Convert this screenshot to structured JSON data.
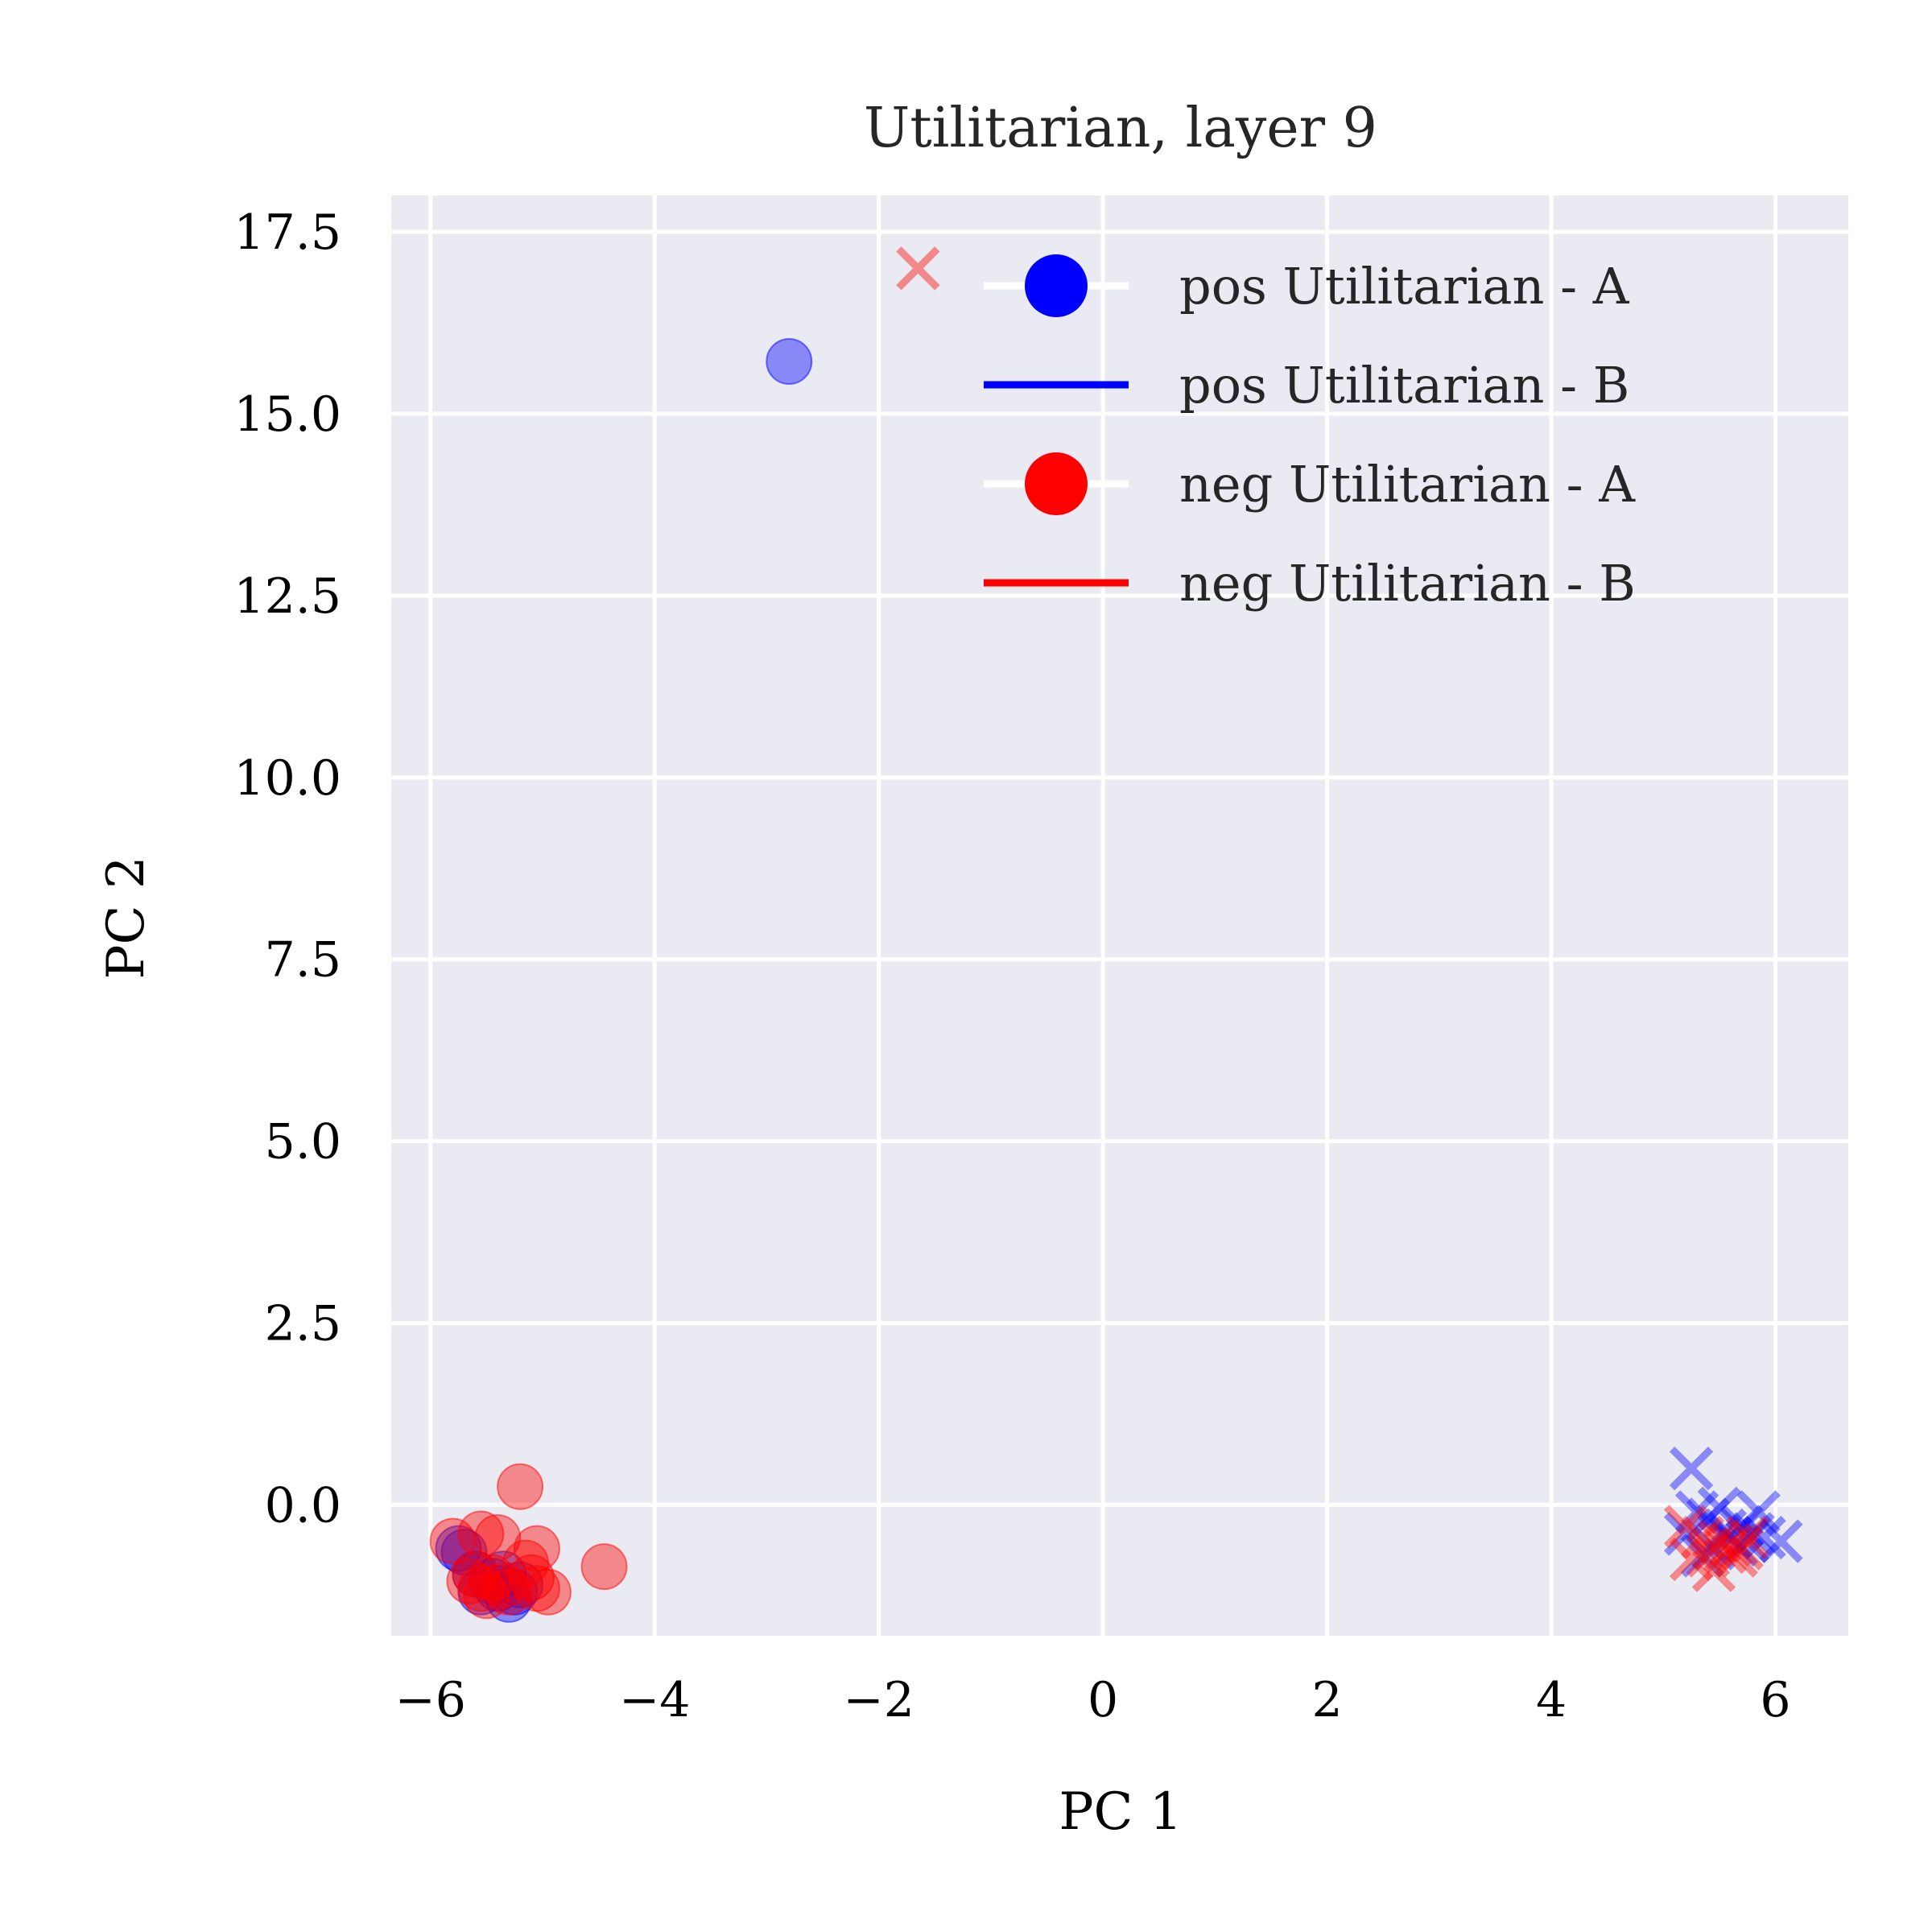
{
  "chart_data": {
    "type": "scatter",
    "title": "Utilitarian, layer 9",
    "xlabel": "PC 1",
    "ylabel": "PC 2",
    "xlim": [
      -6.35,
      6.65
    ],
    "ylim": [
      -1.8,
      18.0
    ],
    "xticks": [
      -6,
      -4,
      -2,
      0,
      2,
      4,
      6
    ],
    "xtick_labels": [
      "−6",
      "−4",
      "−2",
      "0",
      "2",
      "4",
      "6"
    ],
    "yticks": [
      0.0,
      2.5,
      5.0,
      7.5,
      10.0,
      12.5,
      15.0,
      17.5
    ],
    "ytick_labels": [
      "0.0",
      "2.5",
      "5.0",
      "7.5",
      "10.0",
      "12.5",
      "15.0",
      "17.5"
    ],
    "grid": true,
    "legend_position": "top-right",
    "series": [
      {
        "name": "pos Utilitarian - A",
        "marker": "circle",
        "color": "#0000ff",
        "points": [
          {
            "x": -2.8,
            "y": 15.72
          },
          {
            "x": -5.75,
            "y": -0.6
          },
          {
            "x": -5.7,
            "y": -0.65
          },
          {
            "x": -5.6,
            "y": -0.95
          },
          {
            "x": -5.55,
            "y": -1.2
          },
          {
            "x": -5.45,
            "y": -1.05
          },
          {
            "x": -5.4,
            "y": -1.15
          },
          {
            "x": -5.35,
            "y": -0.95
          },
          {
            "x": -5.3,
            "y": -1.3
          },
          {
            "x": -5.25,
            "y": -1.2
          },
          {
            "x": -5.2,
            "y": -1.1
          }
        ]
      },
      {
        "name": "pos Utilitarian - B",
        "marker": "x",
        "color": "#0000ff",
        "points": [
          {
            "x": 5.25,
            "y": 0.5
          },
          {
            "x": 5.2,
            "y": -0.4
          },
          {
            "x": 5.3,
            "y": -0.1
          },
          {
            "x": 5.4,
            "y": -0.2
          },
          {
            "x": 5.45,
            "y": -0.6
          },
          {
            "x": 5.5,
            "y": -0.05
          },
          {
            "x": 5.55,
            "y": -0.35
          },
          {
            "x": 5.6,
            "y": -0.45
          },
          {
            "x": 5.65,
            "y": -0.55
          },
          {
            "x": 5.7,
            "y": -0.3
          },
          {
            "x": 5.75,
            "y": -0.5
          },
          {
            "x": 5.8,
            "y": -0.4
          },
          {
            "x": 5.85,
            "y": -0.1
          },
          {
            "x": 5.9,
            "y": -0.45
          },
          {
            "x": 6.05,
            "y": -0.5
          },
          {
            "x": 5.35,
            "y": -0.7
          }
        ]
      },
      {
        "name": "neg Utilitarian - A",
        "marker": "circle",
        "color": "#ff0000",
        "points": [
          {
            "x": -5.2,
            "y": 0.25
          },
          {
            "x": -5.8,
            "y": -0.5
          },
          {
            "x": -5.55,
            "y": -0.4
          },
          {
            "x": -5.4,
            "y": -0.45
          },
          {
            "x": -5.05,
            "y": -0.6
          },
          {
            "x": -5.15,
            "y": -0.8
          },
          {
            "x": -5.6,
            "y": -0.95
          },
          {
            "x": -5.45,
            "y": -1.0
          },
          {
            "x": -5.65,
            "y": -1.05
          },
          {
            "x": -5.55,
            "y": -1.15
          },
          {
            "x": -5.35,
            "y": -1.1
          },
          {
            "x": -5.1,
            "y": -1.0
          },
          {
            "x": -5.05,
            "y": -1.15
          },
          {
            "x": -4.95,
            "y": -1.2
          },
          {
            "x": -5.3,
            "y": -1.2
          },
          {
            "x": -5.5,
            "y": -1.25
          },
          {
            "x": -4.45,
            "y": -0.85
          }
        ]
      },
      {
        "name": "neg Utilitarian - B",
        "marker": "x",
        "color": "#ff0000",
        "points": [
          {
            "x": -1.65,
            "y": 17.0
          },
          {
            "x": 5.2,
            "y": -0.3
          },
          {
            "x": 5.25,
            "y": -0.75
          },
          {
            "x": 5.35,
            "y": -0.45
          },
          {
            "x": 5.4,
            "y": -0.7
          },
          {
            "x": 5.45,
            "y": -0.9
          },
          {
            "x": 5.5,
            "y": -0.5
          },
          {
            "x": 5.55,
            "y": -0.65
          },
          {
            "x": 5.6,
            "y": -0.55
          },
          {
            "x": 5.65,
            "y": -0.7
          },
          {
            "x": 5.7,
            "y": -0.6
          },
          {
            "x": 5.75,
            "y": -0.45
          }
        ]
      }
    ]
  }
}
